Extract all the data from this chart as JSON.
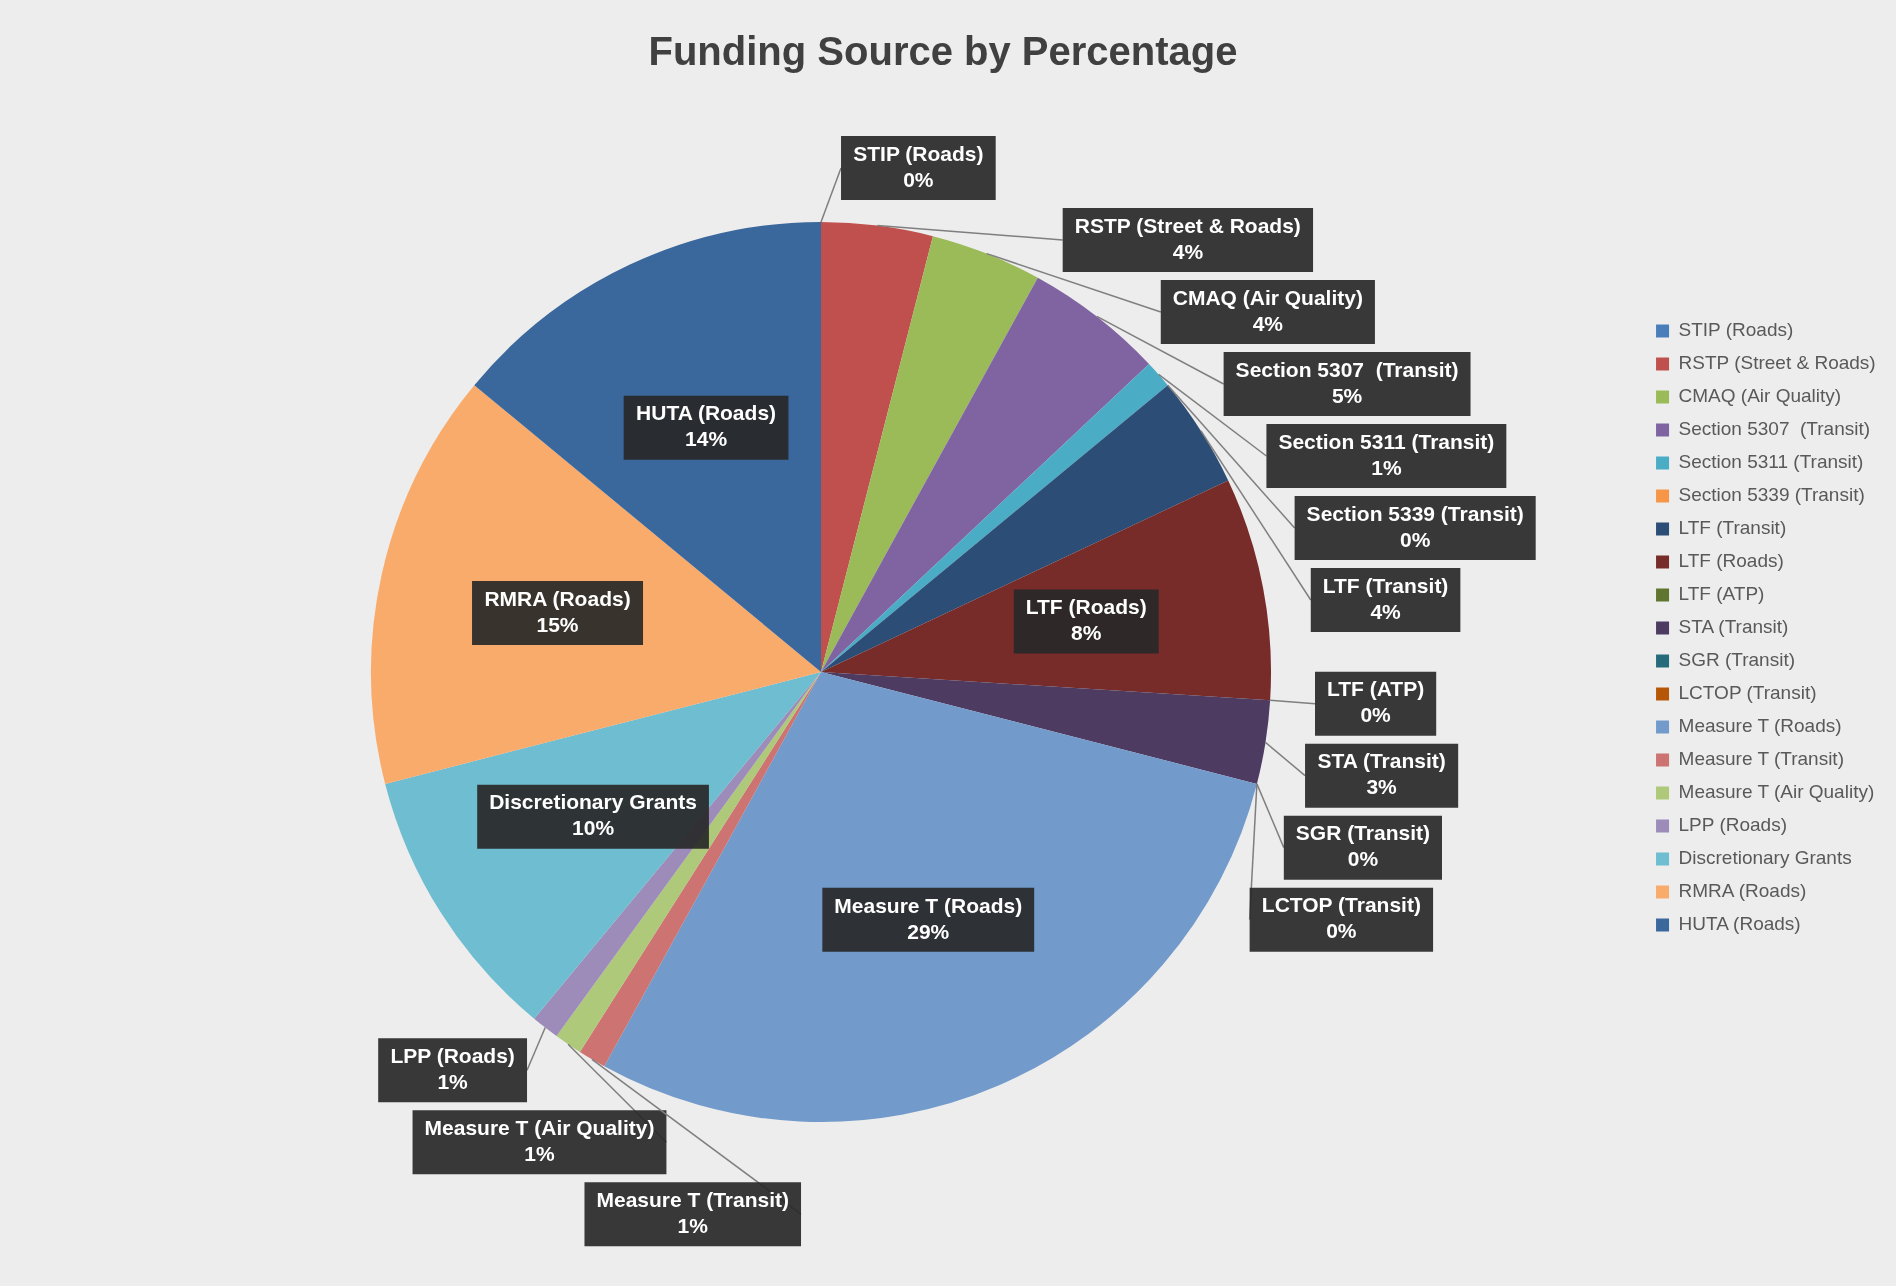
{
  "chart_data": {
    "type": "pie",
    "title": "Funding Source by Percentage",
    "categories": [
      "STIP (Roads)",
      "RSTP (Street & Roads)",
      "CMAQ (Air Quality)",
      "Section 5307  (Transit)",
      "Section 5311 (Transit)",
      "Section 5339 (Transit)",
      "LTF (Transit)",
      "LTF (Roads)",
      "LTF (ATP)",
      "STA (Transit)",
      "SGR (Transit)",
      "LCTOP (Transit)",
      "Measure T (Roads)",
      "Measure T (Transit)",
      "Measure T (Air Quality)",
      "LPP (Roads)",
      "Discretionary Grants",
      "RMRA (Roads)",
      "HUTA (Roads)"
    ],
    "values": [
      0,
      4,
      4,
      5,
      1,
      0,
      4,
      8,
      0,
      3,
      0,
      0,
      29,
      1,
      1,
      1,
      10,
      15,
      14
    ],
    "value_labels": [
      "0%",
      "4%",
      "4%",
      "5%",
      "1%",
      "0%",
      "4%",
      "8%",
      "0%",
      "3%",
      "0%",
      "0%",
      "29%",
      "1%",
      "1%",
      "1%",
      "10%",
      "15%",
      "14%"
    ],
    "colors": [
      "#4a7ebb",
      "#c0504d",
      "#9bbb59",
      "#8064a2",
      "#4bacc6",
      "#f79646",
      "#2c4d75",
      "#772c2a",
      "#5f7530",
      "#4d3b62",
      "#276a7c",
      "#b65708",
      "#729aca",
      "#cd7371",
      "#afc97a",
      "#9d8bba",
      "#6fbdd1",
      "#f9ab6b",
      "#3a679c"
    ],
    "legend": "right"
  }
}
